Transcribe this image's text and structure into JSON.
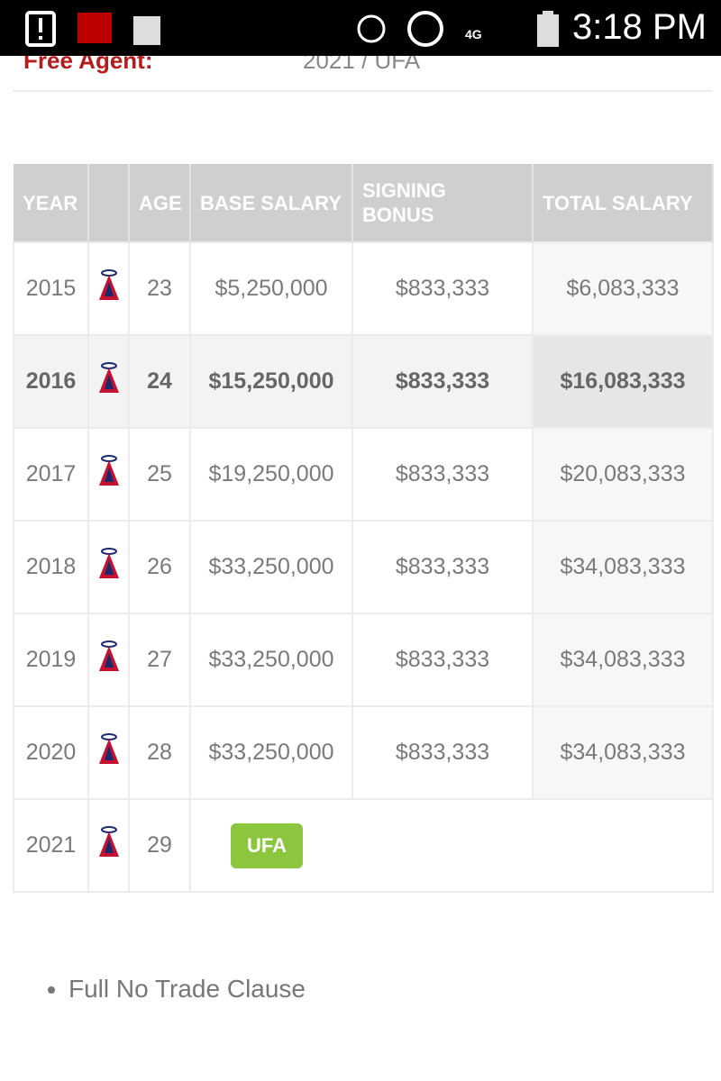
{
  "status_bar": {
    "time": "3:18 PM",
    "network": "4G"
  },
  "free_agent": {
    "label": "Free Agent:",
    "value": "2021 / UFA"
  },
  "table": {
    "headers": {
      "year": "YEAR",
      "age": "AGE",
      "base_salary": "BASE SALARY",
      "signing_bonus": "SIGNING BONUS",
      "total_salary": "TOTAL SALARY"
    },
    "rows": [
      {
        "year": "2015",
        "age": "23",
        "base_salary": "$5,250,000",
        "signing_bonus": "$833,333",
        "total_salary": "$6,083,333"
      },
      {
        "year": "2016",
        "age": "24",
        "base_salary": "$15,250,000",
        "signing_bonus": "$833,333",
        "total_salary": "$16,083,333"
      },
      {
        "year": "2017",
        "age": "25",
        "base_salary": "$19,250,000",
        "signing_bonus": "$833,333",
        "total_salary": "$20,083,333"
      },
      {
        "year": "2018",
        "age": "26",
        "base_salary": "$33,250,000",
        "signing_bonus": "$833,333",
        "total_salary": "$34,083,333"
      },
      {
        "year": "2019",
        "age": "27",
        "base_salary": "$33,250,000",
        "signing_bonus": "$833,333",
        "total_salary": "$34,083,333"
      },
      {
        "year": "2020",
        "age": "28",
        "base_salary": "$33,250,000",
        "signing_bonus": "$833,333",
        "total_salary": "$34,083,333"
      }
    ],
    "final_row": {
      "year": "2021",
      "age": "29",
      "status": "UFA"
    }
  },
  "notes": [
    "Full No Trade Clause"
  ]
}
